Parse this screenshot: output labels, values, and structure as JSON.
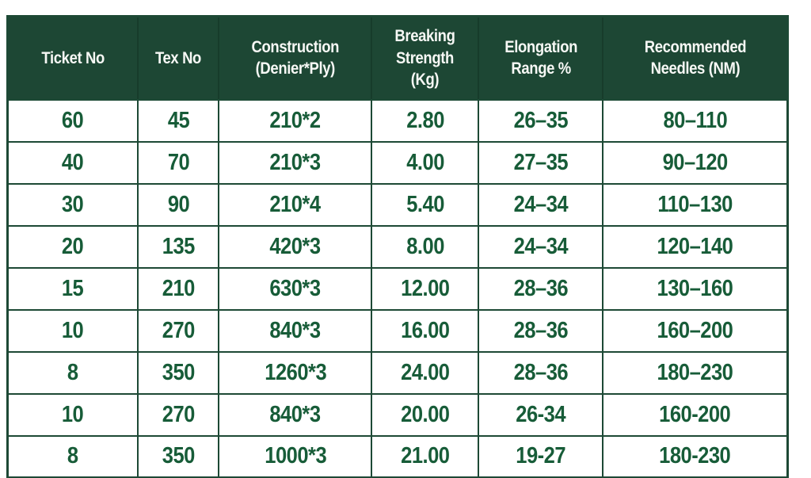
{
  "table": {
    "name": "Thread specification table",
    "columns": [
      {
        "id": "ticket_no",
        "label": "Ticket No"
      },
      {
        "id": "tex_no",
        "label": "Tex No"
      },
      {
        "id": "construction",
        "label": "Construction\n(Denier*Ply)"
      },
      {
        "id": "breaking_strength",
        "label": "Breaking\nStrength (Kg)"
      },
      {
        "id": "elongation",
        "label": "Elongation\nRange %"
      },
      {
        "id": "needles",
        "label": "Recommended\nNeedles (NM)"
      }
    ],
    "rows": [
      [
        "60",
        "45",
        "210*2",
        "2.80",
        "26–35",
        "80–110"
      ],
      [
        "40",
        "70",
        "210*3",
        "4.00",
        "27–35",
        "90–120"
      ],
      [
        "30",
        "90",
        "210*4",
        "5.40",
        "24–34",
        "110–130"
      ],
      [
        "20",
        "135",
        "420*3",
        "8.00",
        "24–34",
        "120–140"
      ],
      [
        "15",
        "210",
        "630*3",
        "12.00",
        "28–36",
        "130–160"
      ],
      [
        "10",
        "270",
        "840*3",
        "16.00",
        "28–36",
        "160–200"
      ],
      [
        "8",
        "350",
        "1260*3",
        "24.00",
        "28–36",
        "180–230"
      ],
      [
        "10",
        "270",
        "840*3",
        "20.00",
        "26-34",
        "160-200"
      ],
      [
        "8",
        "350",
        "1000*3",
        "21.00",
        "19-27",
        "180-230"
      ]
    ],
    "column_widths_pct": [
      16.7,
      10.4,
      19.6,
      13.7,
      15.9,
      23.7
    ]
  },
  "colors": {
    "header_bg": "#1d4734",
    "header_text": "#f7f8f5",
    "header_border": "#173c2b",
    "border": "#1d4935",
    "cell_text": "#175c38"
  }
}
